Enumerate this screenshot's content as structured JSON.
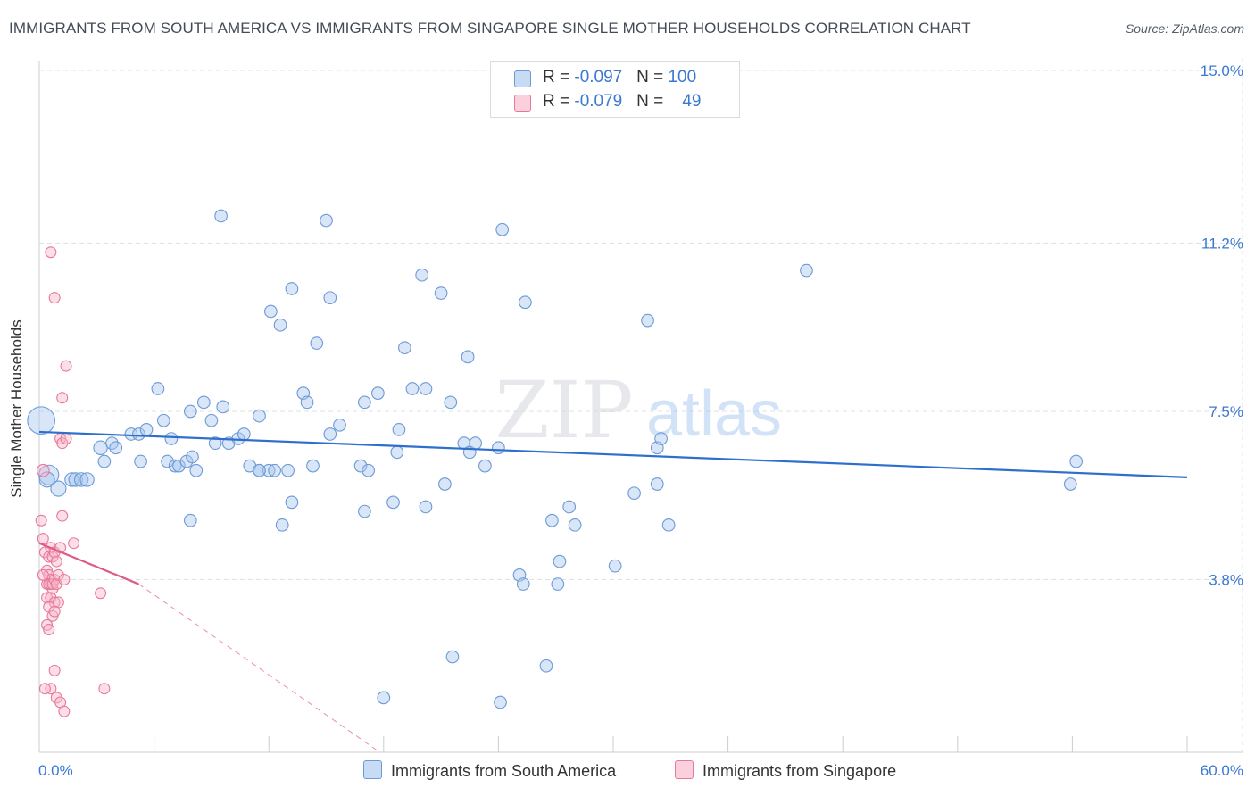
{
  "header": {
    "title": "IMMIGRANTS FROM SOUTH AMERICA VS IMMIGRANTS FROM SINGAPORE SINGLE MOTHER HOUSEHOLDS CORRELATION CHART",
    "source": "Source: ZipAtlas.com"
  },
  "watermark": {
    "zip": "ZIP",
    "atlas": "atlas"
  },
  "legend": {
    "rows": [
      {
        "r_label": "R = ",
        "r_value": "-0.097",
        "n_label": "N = ",
        "n_value": "100",
        "color": "#a9c8f0"
      },
      {
        "r_label": "R = ",
        "r_value": "-0.079",
        "n_label": "N = ",
        "n_value": "49",
        "color": "#f6b6c8"
      }
    ]
  },
  "bottom_legend": {
    "south_america": "Immigrants from South America",
    "singapore": "Immigrants from Singapore"
  },
  "colors": {
    "blue_fill": "#a9c8f0",
    "blue_stroke": "#6d9ad6",
    "blue_line": "#2f6fcc",
    "pink_fill": "#f6b6c8",
    "pink_stroke": "#e8789b",
    "pink_line": "#e05a88",
    "axis_label": "#3b78d0",
    "grid": "#dde1e6"
  },
  "chart_data": {
    "type": "scatter",
    "ylabel": "Single Mother Households",
    "x_tick_labels": [
      "0.0%",
      "60.0%"
    ],
    "y_tick_labels": [
      "3.8%",
      "7.5%",
      "11.2%",
      "15.0%"
    ],
    "xlim": [
      0,
      60
    ],
    "ylim": [
      0,
      15
    ],
    "y_ticks": [
      3.8,
      7.5,
      11.2,
      15.0
    ],
    "grid": true,
    "series": [
      {
        "key": "south_america",
        "legend": "Immigrants from South America",
        "trend": [
          [
            0,
            7.05
          ],
          [
            60,
            6.05
          ]
        ],
        "points": [
          [
            0.1,
            7.3,
            1.8
          ],
          [
            0.5,
            6.1,
            1.3
          ],
          [
            0.4,
            6.0,
            1.0
          ],
          [
            1.0,
            5.8,
            1.0
          ],
          [
            1.7,
            6.0,
            0.9
          ],
          [
            1.9,
            6.0,
            0.9
          ],
          [
            2.2,
            6.0,
            0.9
          ],
          [
            2.5,
            6.0,
            0.9
          ],
          [
            3.2,
            6.7,
            0.9
          ],
          [
            3.4,
            6.4,
            0.8
          ],
          [
            3.8,
            6.8,
            0.8
          ],
          [
            4.0,
            6.7,
            0.8
          ],
          [
            4.8,
            7.0,
            0.8
          ],
          [
            5.2,
            7.0,
            0.8
          ],
          [
            5.6,
            7.1,
            0.8
          ],
          [
            6.2,
            8.0,
            0.8
          ],
          [
            6.5,
            7.3,
            0.8
          ],
          [
            6.9,
            6.9,
            0.8
          ],
          [
            5.3,
            6.4,
            0.8
          ],
          [
            6.7,
            6.4,
            0.8
          ],
          [
            7.1,
            6.3,
            0.8
          ],
          [
            7.3,
            6.3,
            0.8
          ],
          [
            7.7,
            6.4,
            0.8
          ],
          [
            8.0,
            6.5,
            0.8
          ],
          [
            7.9,
            7.5,
            0.8
          ],
          [
            8.6,
            7.7,
            0.8
          ],
          [
            9.0,
            7.3,
            0.8
          ],
          [
            9.6,
            7.6,
            0.8
          ],
          [
            9.2,
            6.8,
            0.8
          ],
          [
            8.2,
            6.2,
            0.8
          ],
          [
            9.9,
            6.8,
            0.8
          ],
          [
            10.4,
            6.9,
            0.8
          ],
          [
            10.7,
            7.0,
            0.8
          ],
          [
            11.5,
            7.4,
            0.8
          ],
          [
            11.0,
            6.3,
            0.8
          ],
          [
            11.5,
            6.2,
            0.8
          ],
          [
            12.1,
            9.7,
            0.8
          ],
          [
            12.6,
            9.4,
            0.8
          ],
          [
            13.2,
            10.2,
            0.8
          ],
          [
            14.5,
            9.0,
            0.8
          ],
          [
            12.0,
            6.2,
            0.8
          ],
          [
            13.0,
            6.2,
            0.8
          ],
          [
            13.8,
            7.9,
            0.8
          ],
          [
            14.0,
            7.7,
            0.8
          ],
          [
            14.3,
            6.3,
            0.8
          ],
          [
            15.2,
            7.0,
            0.8
          ],
          [
            15.7,
            7.2,
            0.8
          ],
          [
            15.2,
            10.0,
            0.8
          ],
          [
            16.8,
            6.3,
            0.8
          ],
          [
            17.2,
            6.2,
            0.8
          ],
          [
            17.0,
            7.7,
            0.8
          ],
          [
            17.7,
            7.9,
            0.8
          ],
          [
            18.7,
            6.6,
            0.8
          ],
          [
            18.8,
            7.1,
            0.8
          ],
          [
            19.1,
            8.9,
            0.8
          ],
          [
            19.5,
            8.0,
            0.8
          ],
          [
            20.0,
            10.5,
            0.8
          ],
          [
            21.0,
            10.1,
            0.8
          ],
          [
            20.2,
            8.0,
            0.8
          ],
          [
            21.5,
            7.7,
            0.8
          ],
          [
            22.2,
            6.8,
            0.8
          ],
          [
            22.5,
            6.6,
            0.8
          ],
          [
            22.8,
            6.8,
            0.8
          ],
          [
            23.3,
            6.3,
            0.8
          ],
          [
            22.4,
            8.7,
            0.8
          ],
          [
            24.0,
            6.7,
            0.8
          ],
          [
            25.4,
            9.9,
            0.8
          ],
          [
            24.2,
            11.5,
            0.8
          ],
          [
            15.0,
            11.7,
            0.8
          ],
          [
            9.5,
            11.8,
            0.8
          ],
          [
            11.5,
            6.2,
            0.8
          ],
          [
            12.3,
            6.2,
            0.8
          ],
          [
            17.0,
            5.3,
            0.8
          ],
          [
            20.2,
            5.4,
            0.8
          ],
          [
            21.2,
            5.9,
            0.8
          ],
          [
            18.5,
            5.5,
            0.8
          ],
          [
            12.7,
            5.0,
            0.8
          ],
          [
            13.2,
            5.5,
            0.8
          ],
          [
            7.9,
            5.1,
            0.8
          ],
          [
            26.8,
            5.1,
            0.8
          ],
          [
            27.7,
            5.4,
            0.8
          ],
          [
            28.0,
            5.0,
            0.8
          ],
          [
            27.2,
            4.2,
            0.8
          ],
          [
            30.1,
            4.1,
            0.8
          ],
          [
            31.1,
            5.7,
            0.8
          ],
          [
            32.9,
            5.0,
            0.8
          ],
          [
            32.3,
            5.9,
            0.8
          ],
          [
            25.1,
            3.9,
            0.8
          ],
          [
            25.3,
            3.7,
            0.8
          ],
          [
            27.1,
            3.7,
            0.8
          ],
          [
            31.8,
            9.5,
            0.8
          ],
          [
            32.3,
            6.7,
            0.8
          ],
          [
            32.5,
            6.9,
            0.8
          ],
          [
            40.1,
            10.6,
            0.8
          ],
          [
            54.2,
            6.4,
            0.8
          ],
          [
            53.9,
            5.9,
            0.8
          ],
          [
            21.6,
            2.1,
            0.8
          ],
          [
            26.5,
            1.9,
            0.8
          ],
          [
            18.0,
            1.2,
            0.8
          ],
          [
            24.1,
            1.1,
            0.8
          ]
        ]
      },
      {
        "key": "singapore",
        "legend": "Immigrants from Singapore",
        "trend": [
          [
            0,
            4.6
          ],
          [
            5.2,
            3.7
          ]
        ],
        "trend_ext": [
          [
            5.2,
            3.7
          ],
          [
            17.8,
            0.0
          ]
        ],
        "points": [
          [
            0.2,
            6.2,
            0.8
          ],
          [
            1.1,
            6.9,
            0.7
          ],
          [
            1.2,
            6.8,
            0.7
          ],
          [
            1.4,
            6.9,
            0.7
          ],
          [
            1.2,
            7.8,
            0.7
          ],
          [
            1.4,
            8.5,
            0.7
          ],
          [
            0.8,
            10.0,
            0.7
          ],
          [
            0.6,
            11.0,
            0.7
          ],
          [
            1.2,
            5.2,
            0.7
          ],
          [
            0.1,
            5.1,
            0.7
          ],
          [
            0.2,
            4.7,
            0.7
          ],
          [
            0.3,
            4.4,
            0.7
          ],
          [
            0.5,
            4.3,
            0.7
          ],
          [
            0.6,
            4.5,
            0.7
          ],
          [
            0.7,
            4.3,
            0.7
          ],
          [
            0.8,
            4.4,
            0.7
          ],
          [
            0.9,
            4.2,
            0.7
          ],
          [
            1.1,
            4.5,
            0.7
          ],
          [
            1.8,
            4.6,
            0.7
          ],
          [
            0.4,
            4.0,
            0.7
          ],
          [
            0.5,
            3.9,
            0.7
          ],
          [
            0.6,
            3.8,
            0.7
          ],
          [
            0.7,
            3.6,
            0.7
          ],
          [
            0.4,
            3.7,
            0.7
          ],
          [
            0.5,
            3.7,
            0.7
          ],
          [
            0.6,
            3.7,
            0.7
          ],
          [
            0.7,
            3.7,
            0.7
          ],
          [
            0.8,
            3.8,
            0.7
          ],
          [
            0.9,
            3.7,
            0.7
          ],
          [
            1.0,
            3.9,
            0.7
          ],
          [
            1.3,
            3.8,
            0.7
          ],
          [
            0.4,
            3.4,
            0.7
          ],
          [
            0.6,
            3.4,
            0.7
          ],
          [
            0.8,
            3.3,
            0.7
          ],
          [
            1.0,
            3.3,
            0.7
          ],
          [
            0.5,
            3.2,
            0.7
          ],
          [
            0.7,
            3.0,
            0.7
          ],
          [
            0.8,
            3.1,
            0.7
          ],
          [
            0.4,
            2.8,
            0.7
          ],
          [
            0.5,
            2.7,
            0.7
          ],
          [
            3.2,
            3.5,
            0.7
          ],
          [
            3.4,
            1.4,
            0.7
          ],
          [
            0.8,
            1.8,
            0.7
          ],
          [
            0.6,
            1.4,
            0.7
          ],
          [
            0.9,
            1.2,
            0.7
          ],
          [
            1.1,
            1.1,
            0.7
          ],
          [
            1.3,
            0.9,
            0.7
          ],
          [
            0.3,
            1.4,
            0.7
          ],
          [
            0.2,
            3.9,
            0.7
          ]
        ]
      }
    ]
  }
}
